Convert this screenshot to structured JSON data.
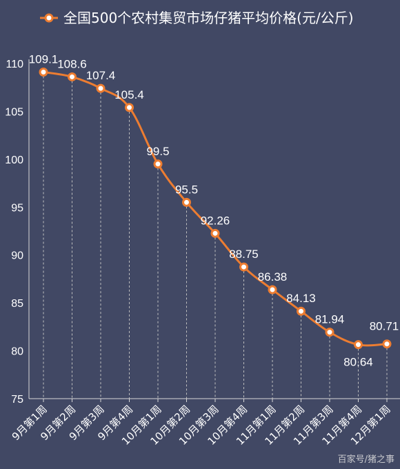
{
  "colors": {
    "background": "#414864",
    "series": "#ED7D31",
    "marker_fill": "#FFFFFF",
    "text": "#FFFFFF",
    "axis": "#D9D9D9",
    "dropline": "#BFBFBF"
  },
  "watermark": "百家号/猪之事",
  "chart_data": {
    "type": "line",
    "title": "",
    "xlabel": "",
    "ylabel": "",
    "ylim": [
      75,
      110
    ],
    "yticks": [
      75,
      80,
      85,
      90,
      95,
      100,
      105,
      110
    ],
    "grid": false,
    "drop_lines": true,
    "legend_position": "top",
    "categories": [
      "9月第1周",
      "9月第2周",
      "9月第3周",
      "9月第4周",
      "10月第1周",
      "10月第2周",
      "10月第3周",
      "10月第4周",
      "11月第1周",
      "11月第2周",
      "11月第3周",
      "11月第4周",
      "12月第1周"
    ],
    "series": [
      {
        "name": "全国500个农村集贸市场仔猪平均价格(元/公斤)",
        "values": [
          109.1,
          108.6,
          107.4,
          105.4,
          99.5,
          95.5,
          92.26,
          88.75,
          86.38,
          84.13,
          81.94,
          80.64,
          80.71
        ],
        "labels": [
          "109.1",
          "108.6",
          "107.4",
          "105.4",
          "99.5",
          "95.5",
          "92.26",
          "88.75",
          "86.38",
          "84.13",
          "81.94",
          "80.64",
          "80.71"
        ]
      }
    ]
  }
}
